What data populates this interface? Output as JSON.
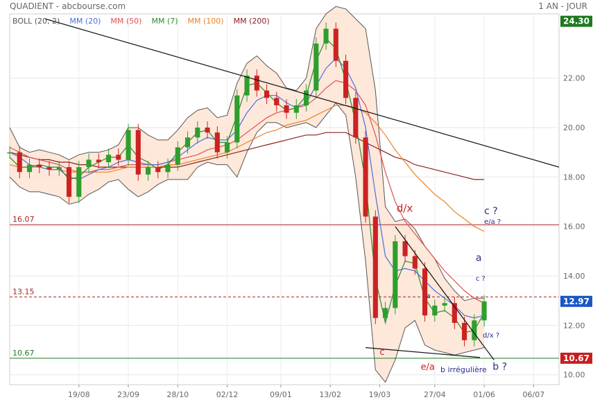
{
  "header": {
    "title": "QUADIENT - abcbourse.com",
    "period": "1 AN - JOUR"
  },
  "legend": [
    {
      "label": "BOLL (20, 2)",
      "color": "#555555"
    },
    {
      "label": "MM (20)",
      "color": "#4a6fe0"
    },
    {
      "label": "MM (50)",
      "color": "#e05050"
    },
    {
      "label": "MM (7)",
      "color": "#2e8b2e"
    },
    {
      "label": "MM (100)",
      "color": "#f07f20"
    },
    {
      "label": "MM (200)",
      "color": "#8b2020"
    }
  ],
  "colors": {
    "up": "#2e9e2e",
    "down": "#cc2222",
    "band_fill": "#fde4d4",
    "band_line": "#555555",
    "ma7": "#2e8b2e",
    "ma20": "#4a6fe0",
    "ma50": "#e05050",
    "ma100": "#f07f20",
    "ma200": "#8b2020",
    "last_price_bg": "#1a56c7",
    "top_price_bg": "#1e7a1e",
    "low_price_bg": "#c81e1e"
  },
  "chart_data": {
    "type": "candlestick",
    "ylim": [
      9.6,
      24.6
    ],
    "y_ticks": [
      "10.00",
      "12.00",
      "14.00",
      "16.00",
      "18.00",
      "20.00",
      "22.00"
    ],
    "x_ticks": [
      "19/08",
      "23/09",
      "28/10",
      "02/12",
      "09/01",
      "13/02",
      "19/03",
      "27/04",
      "01/06",
      "06/07"
    ],
    "price_labels": {
      "top": "24.30",
      "last": "12.97",
      "low": "10.67"
    },
    "levels": [
      {
        "label": "16.07",
        "value": 16.07,
        "color": "#aa2222",
        "dashed": false
      },
      {
        "label": "13.15",
        "value": 13.15,
        "color": "#aa2222",
        "dashed": true
      },
      {
        "label": "10.67",
        "value": 10.67,
        "color": "#1e7a1e",
        "dashed": false
      }
    ],
    "trendlines": [
      {
        "from": [
          "2019-07-26",
          24.4
        ],
        "to": [
          "2020-07-24",
          18.4
        ]
      },
      {
        "from": [
          "2020-03-30",
          16.0
        ],
        "to": [
          "2020-06-08",
          10.6
        ]
      },
      {
        "from": [
          "2020-03-09",
          11.1
        ],
        "to": [
          "2020-05-29",
          10.7
        ]
      }
    ],
    "annotations": [
      {
        "text": "d/x",
        "date": "2020-03-31",
        "value": 16.6,
        "color": "#cc2222",
        "size": 15
      },
      {
        "text": "c ?",
        "date": "2020-06-01",
        "value": 16.5,
        "color": "#2a2a8a",
        "size": 14
      },
      {
        "text": "e/a ?",
        "date": "2020-06-01",
        "value": 16.1,
        "color": "#2a2a8a",
        "size": 10
      },
      {
        "text": "a",
        "date": "2020-05-26",
        "value": 14.6,
        "color": "#2a2a8a",
        "size": 14
      },
      {
        "text": "c ?",
        "date": "2020-05-26",
        "value": 13.8,
        "color": "#2a2a8a",
        "size": 10
      },
      {
        "text": "a",
        "date": "2020-04-21",
        "value": 13.1,
        "color": "#2a2a8a",
        "size": 10
      },
      {
        "text": "d/x ?",
        "date": "2020-05-31",
        "value": 11.5,
        "color": "#2a2a8a",
        "size": 10
      },
      {
        "text": "c",
        "date": "2020-03-19",
        "value": 10.8,
        "color": "#cc2222",
        "size": 13
      },
      {
        "text": "e/a",
        "date": "2020-04-17",
        "value": 10.2,
        "color": "#cc2222",
        "size": 13
      },
      {
        "text": "b irrégulière",
        "date": "2020-05-01",
        "value": 10.1,
        "color": "#2a2a8a",
        "size": 11
      },
      {
        "text": "b ?",
        "date": "2020-06-07",
        "value": 10.2,
        "color": "#2a2a8a",
        "size": 14
      }
    ],
    "x": [
      "2019-07-01",
      "2019-07-08",
      "2019-07-15",
      "2019-07-22",
      "2019-07-29",
      "2019-08-05",
      "2019-08-12",
      "2019-08-19",
      "2019-08-26",
      "2019-09-02",
      "2019-09-09",
      "2019-09-16",
      "2019-09-23",
      "2019-09-30",
      "2019-10-07",
      "2019-10-14",
      "2019-10-21",
      "2019-10-28",
      "2019-11-04",
      "2019-11-11",
      "2019-11-18",
      "2019-11-25",
      "2019-12-02",
      "2019-12-09",
      "2019-12-16",
      "2019-12-23",
      "2019-12-30",
      "2020-01-06",
      "2020-01-13",
      "2020-01-20",
      "2020-01-27",
      "2020-02-03",
      "2020-02-10",
      "2020-02-17",
      "2020-02-24",
      "2020-03-02",
      "2020-03-09",
      "2020-03-16",
      "2020-03-23",
      "2020-03-30",
      "2020-04-06",
      "2020-04-13",
      "2020-04-20",
      "2020-04-27",
      "2020-05-04",
      "2020-05-11",
      "2020-05-18",
      "2020-05-25",
      "2020-06-01"
    ],
    "close": [
      19.0,
      18.2,
      18.5,
      18.4,
      18.3,
      18.4,
      17.2,
      18.4,
      18.7,
      18.6,
      18.9,
      18.7,
      19.9,
      18.1,
      18.4,
      18.2,
      18.5,
      19.2,
      19.6,
      20.0,
      19.8,
      19.0,
      19.4,
      21.3,
      22.1,
      21.5,
      21.2,
      20.9,
      20.6,
      20.9,
      21.5,
      23.4,
      24.0,
      22.7,
      21.2,
      19.6,
      16.4,
      12.3,
      12.7,
      15.4,
      14.8,
      14.3,
      12.4,
      12.8,
      12.9,
      12.1,
      11.4,
      12.2,
      12.97
    ],
    "upper": [
      20.0,
      19.2,
      19.0,
      19.1,
      19.0,
      18.9,
      18.7,
      18.9,
      19.0,
      19.0,
      19.1,
      19.3,
      20.0,
      20.0,
      19.7,
      19.5,
      19.5,
      19.9,
      20.4,
      20.7,
      20.8,
      20.4,
      20.5,
      21.8,
      22.6,
      22.9,
      22.5,
      22.2,
      21.6,
      21.5,
      22.0,
      24.0,
      24.6,
      24.9,
      24.8,
      24.4,
      24.0,
      21.5,
      16.8,
      16.2,
      16.3,
      15.9,
      15.2,
      14.7,
      13.9,
      13.4,
      13.0,
      13.1,
      13.1
    ],
    "lower": [
      18.0,
      17.6,
      17.4,
      17.4,
      17.3,
      17.2,
      16.9,
      17.0,
      17.3,
      17.5,
      17.8,
      17.9,
      17.5,
      17.2,
      17.4,
      17.7,
      17.9,
      17.9,
      17.9,
      18.4,
      18.6,
      18.5,
      18.5,
      18.0,
      19.0,
      19.8,
      20.2,
      20.2,
      20.0,
      20.1,
      20.2,
      20.0,
      20.5,
      21.0,
      20.5,
      18.0,
      14.6,
      10.2,
      9.7,
      10.6,
      11.9,
      12.2,
      11.2,
      11.0,
      10.9,
      10.8,
      10.9,
      11.0,
      11.1
    ],
    "ma7": [
      18.8,
      18.4,
      18.4,
      18.5,
      18.4,
      18.4,
      17.9,
      18.0,
      18.4,
      18.6,
      18.8,
      18.8,
      19.3,
      18.8,
      18.6,
      18.3,
      18.5,
      19.0,
      19.4,
      19.8,
      19.9,
      19.4,
      19.4,
      20.5,
      21.7,
      21.8,
      21.4,
      21.0,
      20.7,
      20.8,
      21.3,
      22.7,
      23.6,
      23.2,
      21.9,
      20.2,
      17.8,
      13.9,
      12.1,
      13.6,
      14.6,
      14.5,
      13.1,
      12.5,
      12.6,
      12.3,
      11.7,
      11.8,
      12.5
    ],
    "ma20": [
      19.0,
      18.8,
      18.5,
      18.4,
      18.3,
      18.3,
      18.0,
      17.9,
      18.1,
      18.3,
      18.4,
      18.6,
      18.7,
      18.6,
      18.5,
      18.5,
      18.6,
      18.8,
      19.1,
      19.4,
      19.6,
      19.5,
      19.5,
      19.9,
      20.6,
      21.1,
      21.3,
      21.3,
      21.0,
      20.8,
      21.0,
      21.7,
      22.4,
      22.8,
      22.4,
      21.6,
      20.0,
      17.3,
      14.8,
      14.2,
      14.3,
      14.2,
      13.8,
      13.4,
      13.1,
      12.8,
      12.4,
      12.3,
      12.4
    ],
    "ma50": [
      19.2,
      19.0,
      18.8,
      18.7,
      18.6,
      18.5,
      18.3,
      18.2,
      18.2,
      18.3,
      18.3,
      18.4,
      18.5,
      18.5,
      18.5,
      18.5,
      18.6,
      18.7,
      18.8,
      18.9,
      19.1,
      19.2,
      19.3,
      19.5,
      19.8,
      20.1,
      20.4,
      20.6,
      20.7,
      20.8,
      20.9,
      21.2,
      21.6,
      21.9,
      21.8,
      21.5,
      20.9,
      19.7,
      18.2,
      17.0,
      16.2,
      15.7,
      15.2,
      14.7,
      14.2,
      13.8,
      13.4,
      13.1,
      12.9
    ],
    "ma100": [
      18.5,
      18.4,
      18.4,
      18.4,
      18.3,
      18.3,
      18.2,
      18.2,
      18.2,
      18.2,
      18.2,
      18.3,
      18.4,
      18.4,
      18.4,
      18.4,
      18.5,
      18.5,
      18.6,
      18.7,
      18.8,
      18.9,
      19.0,
      19.2,
      19.4,
      19.6,
      19.8,
      19.9,
      20.1,
      20.2,
      20.3,
      20.5,
      20.7,
      20.9,
      20.9,
      20.8,
      20.6,
      20.2,
      19.7,
      19.1,
      18.6,
      18.1,
      17.7,
      17.3,
      17.0,
      16.6,
      16.3,
      16.0,
      15.8
    ],
    "ma200": [
      19.0,
      18.9,
      18.8,
      18.7,
      18.7,
      18.6,
      18.6,
      18.5,
      18.5,
      18.4,
      18.4,
      18.4,
      18.4,
      18.4,
      18.4,
      18.4,
      18.4,
      18.4,
      18.5,
      18.6,
      18.7,
      18.8,
      18.9,
      19.0,
      19.1,
      19.2,
      19.3,
      19.4,
      19.5,
      19.6,
      19.7,
      19.7,
      19.8,
      19.8,
      19.8,
      19.6,
      19.4,
      19.2,
      19.0,
      18.8,
      18.7,
      18.5,
      18.4,
      18.3,
      18.2,
      18.1,
      18.0,
      17.9,
      17.9
    ]
  }
}
